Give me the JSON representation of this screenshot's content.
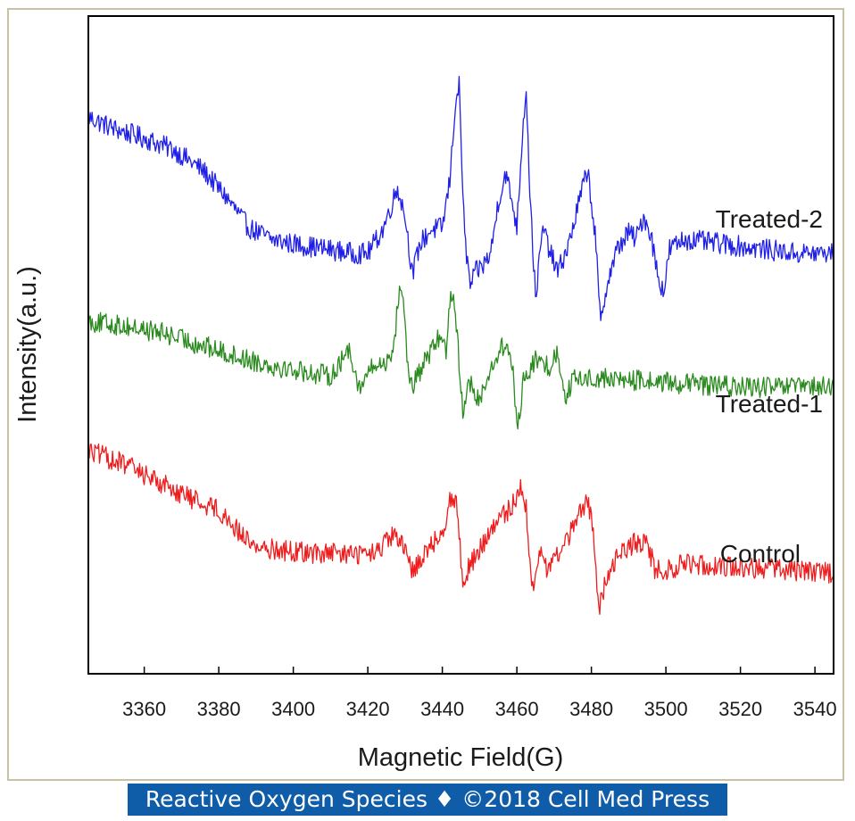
{
  "chart_data": {
    "type": "line",
    "title": "",
    "xlabel": "Magnetic Field(G)",
    "ylabel": "Intensity(a.u.)",
    "xlim": [
      3345,
      3545
    ],
    "x_ticks": [
      "3360",
      "3380",
      "3400",
      "3420",
      "3440",
      "3460",
      "3480",
      "3500",
      "3520",
      "3540"
    ],
    "yticks_shown": false,
    "grid": false,
    "legend": "inline labels at right",
    "series": [
      {
        "name": "Treated-2",
        "color": "#1f1fe6",
        "points": [
          [
            3345,
            9.2
          ],
          [
            3352,
            8.7
          ],
          [
            3360,
            8.3
          ],
          [
            3368,
            7.8
          ],
          [
            3376,
            6.9
          ],
          [
            3382,
            5.8
          ],
          [
            3388,
            4.5
          ],
          [
            3394,
            4.0
          ],
          [
            3400,
            3.8
          ],
          [
            3408,
            3.6
          ],
          [
            3416,
            3.4
          ],
          [
            3420,
            3.4
          ],
          [
            3424,
            4.4
          ],
          [
            3428,
            6.2
          ],
          [
            3430,
            5.0
          ],
          [
            3432,
            2.5
          ],
          [
            3434,
            3.8
          ],
          [
            3437,
            4.4
          ],
          [
            3440,
            4.5
          ],
          [
            3442,
            6.5
          ],
          [
            3443.5,
            9.8
          ],
          [
            3444.5,
            10.5
          ],
          [
            3446,
            4.0
          ],
          [
            3447.5,
            2.0
          ],
          [
            3449,
            2.6
          ],
          [
            3451,
            2.9
          ],
          [
            3453,
            3.4
          ],
          [
            3455,
            5.6
          ],
          [
            3457,
            6.8
          ],
          [
            3459,
            5.4
          ],
          [
            3460,
            4.5
          ],
          [
            3461.5,
            8.5
          ],
          [
            3462.5,
            10.5
          ],
          [
            3463.5,
            6.0
          ],
          [
            3465,
            1.5
          ],
          [
            3467,
            4.5
          ],
          [
            3469,
            3.4
          ],
          [
            3471,
            2.6
          ],
          [
            3474,
            3.8
          ],
          [
            3477,
            5.8
          ],
          [
            3479,
            7.0
          ],
          [
            3481,
            4.2
          ],
          [
            3482.5,
            0.3
          ],
          [
            3484,
            2.0
          ],
          [
            3487,
            3.6
          ],
          [
            3490,
            4.3
          ],
          [
            3492,
            4.0
          ],
          [
            3494,
            5.0
          ],
          [
            3496,
            4.2
          ],
          [
            3498,
            2.3
          ],
          [
            3499.5,
            1.8
          ],
          [
            3501,
            3.6
          ],
          [
            3505,
            4.0
          ],
          [
            3515,
            3.8
          ],
          [
            3525,
            3.6
          ],
          [
            3535,
            3.4
          ],
          [
            3545,
            3.4
          ]
        ]
      },
      {
        "name": "Treated-1",
        "color": "#2a8a1e",
        "points": [
          [
            3345,
            0.5
          ],
          [
            3355,
            0.3
          ],
          [
            3365,
            0.0
          ],
          [
            3375,
            -0.5
          ],
          [
            3385,
            -1.0
          ],
          [
            3395,
            -1.4
          ],
          [
            3405,
            -1.7
          ],
          [
            3410,
            -1.8
          ],
          [
            3413,
            -1.2
          ],
          [
            3415,
            -0.6
          ],
          [
            3418,
            -2.5
          ],
          [
            3420,
            -1.6
          ],
          [
            3425,
            -1.2
          ],
          [
            3427,
            -0.6
          ],
          [
            3428.5,
            2.0
          ],
          [
            3429.5,
            1.6
          ],
          [
            3431,
            -2.0
          ],
          [
            3432,
            -2.3
          ],
          [
            3435,
            -1.3
          ],
          [
            3438,
            -0.5
          ],
          [
            3440,
            0.0
          ],
          [
            3441,
            -1.0
          ],
          [
            3442,
            1.5
          ],
          [
            3443,
            1.8
          ],
          [
            3444,
            -0.2
          ],
          [
            3445.5,
            -3.4
          ],
          [
            3447,
            -1.8
          ],
          [
            3449,
            -3.0
          ],
          [
            3452,
            -2.0
          ],
          [
            3455,
            -0.8
          ],
          [
            3457,
            -0.5
          ],
          [
            3459,
            -1.5
          ],
          [
            3460,
            -4.2
          ],
          [
            3462,
            -1.8
          ],
          [
            3465,
            -1.2
          ],
          [
            3469,
            -1.4
          ],
          [
            3471,
            -0.8
          ],
          [
            3473,
            -2.7
          ],
          [
            3475,
            -2.0
          ],
          [
            3480,
            -1.9
          ],
          [
            3490,
            -2.0
          ],
          [
            3500,
            -2.1
          ],
          [
            3510,
            -2.2
          ],
          [
            3520,
            -2.3
          ],
          [
            3530,
            -2.3
          ],
          [
            3545,
            -2.3
          ]
        ]
      },
      {
        "name": "Control",
        "color": "#ee1c1c",
        "points": [
          [
            3345,
            -5.0
          ],
          [
            3355,
            -5.6
          ],
          [
            3365,
            -6.4
          ],
          [
            3372,
            -7.0
          ],
          [
            3380,
            -7.5
          ],
          [
            3385,
            -8.4
          ],
          [
            3390,
            -9.1
          ],
          [
            3400,
            -9.3
          ],
          [
            3410,
            -9.4
          ],
          [
            3418,
            -9.4
          ],
          [
            3422,
            -9.4
          ],
          [
            3427,
            -8.6
          ],
          [
            3429,
            -9.0
          ],
          [
            3432,
            -10.1
          ],
          [
            3435,
            -9.4
          ],
          [
            3440,
            -8.5
          ],
          [
            3442.5,
            -6.8
          ],
          [
            3444,
            -7.5
          ],
          [
            3445.5,
            -10.6
          ],
          [
            3447,
            -10.0
          ],
          [
            3450,
            -9.2
          ],
          [
            3455,
            -8.0
          ],
          [
            3458,
            -7.5
          ],
          [
            3460,
            -7.0
          ],
          [
            3461,
            -6.3
          ],
          [
            3462.5,
            -7.5
          ],
          [
            3464,
            -11.0
          ],
          [
            3466,
            -9.4
          ],
          [
            3468,
            -10.0
          ],
          [
            3472,
            -9.2
          ],
          [
            3476,
            -8.0
          ],
          [
            3479,
            -7.0
          ],
          [
            3480.5,
            -8.5
          ],
          [
            3482,
            -11.8
          ],
          [
            3484,
            -10.5
          ],
          [
            3487,
            -9.4
          ],
          [
            3492,
            -8.9
          ],
          [
            3495,
            -9.0
          ],
          [
            3497,
            -10.0
          ],
          [
            3499,
            -10.2
          ],
          [
            3505,
            -9.8
          ],
          [
            3515,
            -9.9
          ],
          [
            3525,
            -10.0
          ],
          [
            3535,
            -10.1
          ],
          [
            3545,
            -10.2
          ]
        ]
      }
    ],
    "ylim": [
      -14.5,
      13.5
    ]
  },
  "caption": "Reactive Oxygen Species ♦ ©2018 Cell Med Press"
}
